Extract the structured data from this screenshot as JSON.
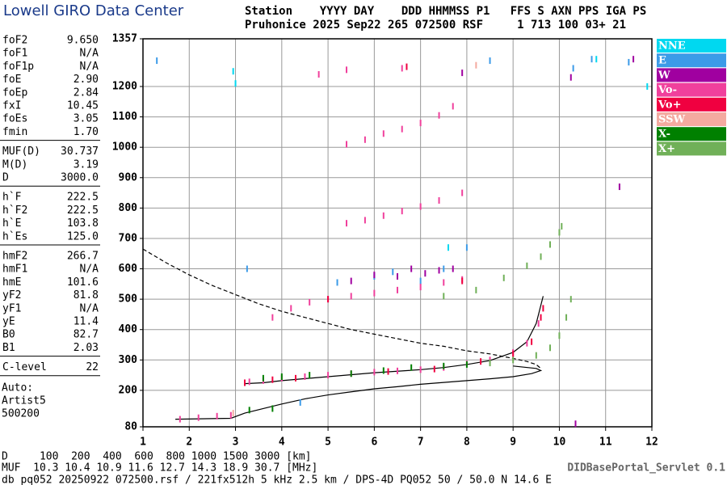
{
  "header": {
    "title": "Lowell GIRO Data Center",
    "columns": "Station    YYYY DAY    DDD HHMMSS P1   FFS S AXN PPS IGA PS",
    "row": "Pruhonice 2025 Sep22 265 072500 RSF     1 713 100 03+ 21"
  },
  "params": [
    {
      "rows": [
        {
          "name": "foF2",
          "value": "9.650"
        },
        {
          "name": "foF1",
          "value": "N/A"
        },
        {
          "name": "foF1p",
          "value": "N/A"
        },
        {
          "name": "foE",
          "value": "2.90"
        },
        {
          "name": "foEp",
          "value": "2.84"
        },
        {
          "name": "fxI",
          "value": "10.45"
        },
        {
          "name": "foEs",
          "value": "3.05"
        },
        {
          "name": "fmin",
          "value": "1.70"
        }
      ]
    },
    {
      "rows": [
        {
          "name": "MUF(D)",
          "value": "30.737"
        },
        {
          "name": "M(D)",
          "value": "3.19"
        },
        {
          "name": "D",
          "value": "3000.0"
        }
      ]
    },
    {
      "rows": [
        {
          "name": "h`F",
          "value": "222.5"
        },
        {
          "name": "h`F2",
          "value": "222.5"
        },
        {
          "name": "h`E",
          "value": "103.8"
        },
        {
          "name": "h`Es",
          "value": "125.0"
        }
      ]
    },
    {
      "rows": [
        {
          "name": "hmF2",
          "value": "266.7"
        },
        {
          "name": "hmF1",
          "value": "N/A"
        },
        {
          "name": "hmE",
          "value": "101.6"
        },
        {
          "name": "yF2",
          "value": "81.8"
        },
        {
          "name": "yF1",
          "value": "N/A"
        },
        {
          "name": "yE",
          "value": "11.4"
        },
        {
          "name": "B0",
          "value": "82.7"
        },
        {
          "name": "B1",
          "value": "2.03"
        }
      ]
    },
    {
      "rows": [
        {
          "name": "C-level",
          "value": "22"
        }
      ]
    }
  ],
  "auto": [
    "Auto:",
    "Artist5",
    "500200"
  ],
  "chart_data": {
    "type": "scatter",
    "xlim": [
      1,
      12
    ],
    "xticks": [
      1,
      2,
      3,
      4,
      5,
      6,
      7,
      8,
      9,
      10,
      11,
      12
    ],
    "ylim": [
      80,
      1357
    ],
    "yticks": [
      80,
      200,
      300,
      400,
      500,
      600,
      700,
      800,
      900,
      1000,
      1100,
      1200,
      1357
    ],
    "grid": true,
    "series": [
      {
        "name": "NNE",
        "color": "#00d8f0",
        "x": [
          2.95,
          3.0,
          7.6,
          10.8,
          11.9
        ],
        "values": [
          1250,
          1210,
          670,
          1290,
          1200
        ]
      },
      {
        "name": "E",
        "color": "#3c9be8",
        "x": [
          1.3,
          3.25,
          5.2,
          6.0,
          6.4,
          7.0,
          7.5,
          8.0,
          8.5,
          10.3,
          10.7,
          11.5,
          4.4
        ],
        "values": [
          1285,
          600,
          555,
          575,
          590,
          560,
          600,
          670,
          1285,
          1260,
          1290,
          1280,
          160
        ]
      },
      {
        "name": "W",
        "color": "#a000a0",
        "x": [
          5.5,
          6.0,
          6.5,
          6.8,
          7.1,
          7.4,
          7.7,
          7.9,
          10.35,
          10.25,
          11.6,
          11.3
        ],
        "values": [
          560,
          580,
          575,
          600,
          585,
          595,
          600,
          1245,
          90,
          1230,
          1290,
          870
        ]
      },
      {
        "name": "Vo-",
        "color": "#f0409c",
        "x": [
          3.3,
          3.6,
          4.0,
          4.5,
          5.0,
          5.5,
          6.0,
          6.5,
          7.0,
          7.5,
          8.0,
          8.5,
          9.0,
          9.3,
          9.55,
          1.8,
          2.2,
          2.6,
          2.9,
          3.8,
          4.2,
          4.6,
          5.0,
          5.5,
          6.0,
          6.5,
          7.0,
          7.5,
          7.9,
          5.4,
          5.8,
          6.2,
          6.6,
          7.0,
          7.4,
          7.9,
          5.4,
          5.8,
          6.2,
          6.6,
          7.0,
          7.4,
          7.7,
          4.8,
          5.4,
          6.6
        ],
        "values": [
          228,
          232,
          240,
          245,
          250,
          255,
          260,
          264,
          268,
          275,
          287,
          300,
          325,
          355,
          420,
          105,
          110,
          115,
          118,
          440,
          470,
          490,
          500,
          510,
          520,
          530,
          540,
          555,
          565,
          750,
          760,
          775,
          790,
          805,
          825,
          850,
          1010,
          1025,
          1045,
          1060,
          1080,
          1105,
          1135,
          1240,
          1255,
          1260
        ]
      },
      {
        "name": "Vo+",
        "color": "#f00040",
        "x": [
          3.2,
          3.8,
          4.3,
          6.3,
          7.3,
          8.3,
          9.0,
          9.4,
          9.6,
          9.65,
          6.7,
          5.0,
          7.9
        ],
        "values": [
          225,
          235,
          240,
          262,
          270,
          295,
          320,
          360,
          440,
          470,
          1265,
          500,
          560
        ]
      },
      {
        "name": "SSW",
        "color": "#f4aaa0",
        "x": [
          2.95,
          8.2
        ],
        "values": [
          125,
          1270
        ]
      },
      {
        "name": "X-",
        "color": "#008000",
        "x": [
          3.6,
          4.0,
          4.6,
          5.5,
          6.2,
          6.8,
          7.5,
          8.0,
          3.3,
          3.8
        ],
        "values": [
          240,
          245,
          250,
          255,
          265,
          275,
          280,
          285,
          135,
          140
        ]
      },
      {
        "name": "X+",
        "color": "#70b058",
        "x": [
          8.5,
          9.0,
          9.5,
          9.8,
          10.0,
          10.15,
          10.25,
          7.5,
          8.2,
          8.8,
          9.3,
          9.6,
          9.8,
          10.0,
          10.05
        ],
        "values": [
          290,
          300,
          315,
          340,
          380,
          440,
          500,
          510,
          530,
          570,
          610,
          640,
          680,
          720,
          740
        ]
      }
    ],
    "lines": [
      {
        "style": "dashed",
        "color": "#000000",
        "x": [
          1,
          1.5,
          2,
          2.5,
          3,
          3.5,
          4,
          4.5,
          5,
          5.5,
          6,
          6.5,
          7,
          7.5,
          8,
          8.5,
          9,
          9.3,
          9.5,
          9.6
        ],
        "values": [
          665,
          620,
          580,
          545,
          515,
          485,
          460,
          440,
          420,
          400,
          385,
          370,
          355,
          345,
          330,
          320,
          305,
          295,
          285,
          272
        ]
      },
      {
        "style": "solid",
        "color": "#000000",
        "x": [
          1.7,
          2.9,
          3.2,
          3.6,
          4,
          4.5,
          5,
          5.5,
          6,
          6.5,
          7,
          7.5,
          8,
          8.5,
          9,
          9.4,
          9.6,
          9.5,
          9.0
        ],
        "values": [
          105,
          108,
          125,
          140,
          155,
          172,
          185,
          195,
          205,
          212,
          220,
          226,
          232,
          238,
          245,
          255,
          265,
          272,
          280
        ]
      },
      {
        "style": "solid",
        "color": "#000000",
        "x": [
          3.2,
          3.6,
          4,
          5,
          6,
          7,
          7.5,
          8,
          8.5,
          9,
          9.3,
          9.5,
          9.65
        ],
        "values": [
          222,
          225,
          232,
          245,
          258,
          268,
          275,
          285,
          298,
          325,
          360,
          420,
          510
        ]
      }
    ]
  },
  "footer": {
    "distance_row": "D     100  200  400  600  800 1000 1500 3000 [km]",
    "muf_row": "MUF  10.3 10.4 10.9 11.6 12.7 14.3 18.9 30.7 [MHz]",
    "servlet": "DIDBasePortal_Servlet 0.1",
    "db": "db pq052 20250922 072500.rsf / 221fx512h 5 kHz 2.5 km / DPS-4D PQ052 50 / 50.0 N 14.6 E"
  }
}
